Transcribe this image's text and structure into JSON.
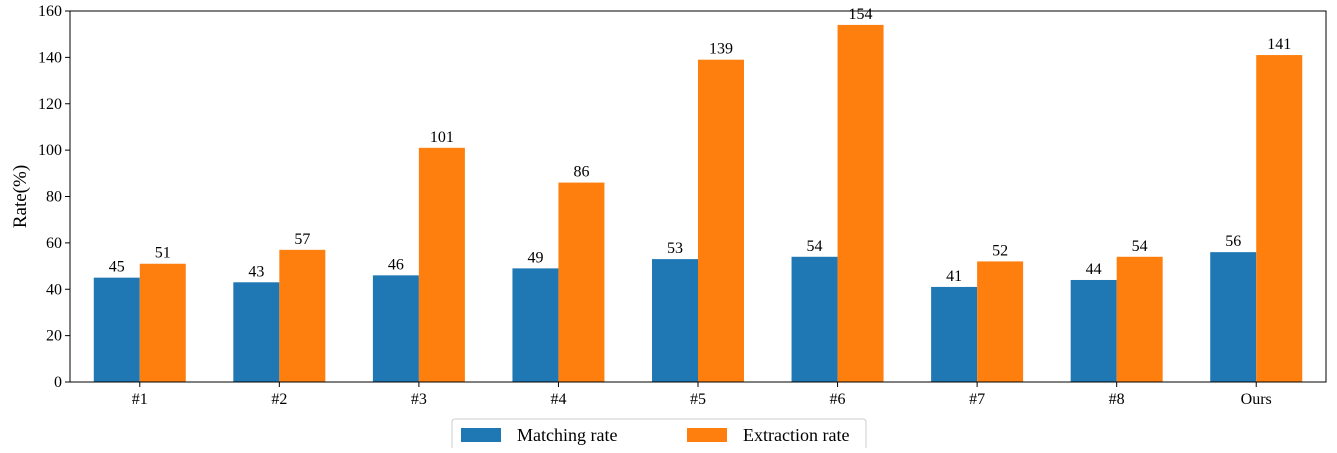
{
  "chart_data": {
    "type": "bar",
    "title": "",
    "xlabel": "",
    "ylabel": "Rate(%)",
    "ylim": [
      0,
      160
    ],
    "yticks": [
      0,
      20,
      40,
      60,
      80,
      100,
      120,
      140,
      160
    ],
    "grid": false,
    "legend_position": "bottom-center",
    "categories": [
      "#1",
      "#2",
      "#3",
      "#4",
      "#5",
      "#6",
      "#7",
      "#8",
      "Ours"
    ],
    "series": [
      {
        "name": "Matching rate",
        "color": "#1f77b4",
        "values": [
          45,
          43,
          46,
          49,
          53,
          54,
          41,
          44,
          56
        ]
      },
      {
        "name": "Extraction rate",
        "color": "#ff7f0e",
        "values": [
          51,
          57,
          101,
          86,
          139,
          154,
          52,
          54,
          141
        ]
      }
    ]
  }
}
